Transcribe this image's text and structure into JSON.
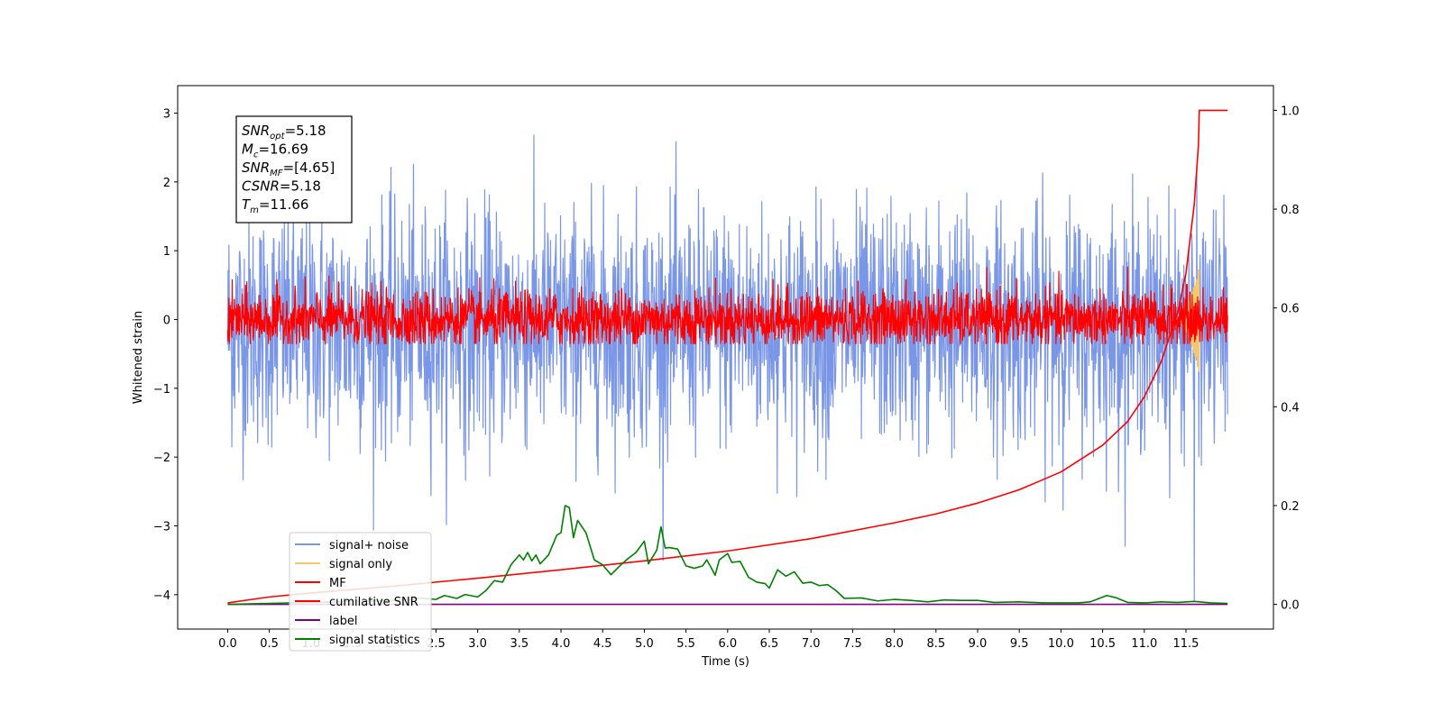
{
  "chart_data": {
    "type": "line",
    "xlabel": "Time (s)",
    "ylabel": "Whitened strain",
    "xlim": [
      -0.6,
      12.55
    ],
    "ylim_left": [
      -4.5,
      3.4
    ],
    "ylim_right": [
      -0.05,
      1.05
    ],
    "x_ticks": [
      0.0,
      0.5,
      1.0,
      1.5,
      2.0,
      2.5,
      3.0,
      3.5,
      4.0,
      4.5,
      5.0,
      5.5,
      6.0,
      6.5,
      7.0,
      7.5,
      8.0,
      8.5,
      9.0,
      9.5,
      10.0,
      10.5,
      11.0,
      11.5
    ],
    "x_tick_labels": [
      "0.0",
      "0.5",
      "1.0",
      "1.5",
      "2.0",
      "2.5",
      "3.0",
      "3.5",
      "4.0",
      "4.5",
      "5.0",
      "5.5",
      "6.0",
      "6.5",
      "7.0",
      "7.5",
      "8.0",
      "8.5",
      "9.0",
      "9.5",
      "10.0",
      "10.5",
      "11.0",
      "11.5"
    ],
    "left_ticks": [
      3,
      2,
      1,
      0,
      -1,
      -2,
      -3,
      -4
    ],
    "left_tick_labels": [
      "3",
      "2",
      "1",
      "0",
      "−1",
      "−2",
      "−3",
      "−4"
    ],
    "right_ticks": [
      1.0,
      0.8,
      0.6,
      0.4,
      0.2,
      0.0
    ],
    "right_tick_labels": [
      "1.0",
      "0.8",
      "0.6",
      "0.4",
      "0.2",
      "0.0"
    ],
    "series": [
      {
        "name": "signal+ noise",
        "axis": "left",
        "color": "#7a96e6",
        "style": "noise",
        "x_range": [
          0.0,
          12.0
        ],
        "mean": -0.1,
        "amplitude": 1.0,
        "max": 3.05,
        "min": -3.5,
        "spike_min": {
          "x": 11.6,
          "y": -4.1
        }
      },
      {
        "name": "signal only",
        "axis": "left",
        "color": "#f5c96b",
        "style": "chirp",
        "x_range": [
          11.35,
          11.66
        ],
        "amplitude_max": 0.8
      },
      {
        "name": "MF",
        "axis": "left",
        "color": "#ff0000",
        "style": "noise",
        "x_range": [
          0.0,
          12.0
        ],
        "mean": 0.0,
        "amplitude": 0.25,
        "max": 0.9,
        "min": -0.35
      },
      {
        "name": "cumilative SNR",
        "axis": "right",
        "color": "#ff0000",
        "points": [
          [
            0.0,
            0.003
          ],
          [
            0.5,
            0.015
          ],
          [
            1.0,
            0.023
          ],
          [
            2.0,
            0.037
          ],
          [
            3.0,
            0.053
          ],
          [
            4.0,
            0.07
          ],
          [
            5.0,
            0.088
          ],
          [
            6.0,
            0.108
          ],
          [
            7.0,
            0.133
          ],
          [
            8.0,
            0.165
          ],
          [
            8.5,
            0.183
          ],
          [
            9.0,
            0.205
          ],
          [
            9.5,
            0.232
          ],
          [
            10.0,
            0.268
          ],
          [
            10.5,
            0.322
          ],
          [
            10.8,
            0.37
          ],
          [
            11.0,
            0.42
          ],
          [
            11.2,
            0.49
          ],
          [
            11.4,
            0.59
          ],
          [
            11.5,
            0.67
          ],
          [
            11.6,
            0.81
          ],
          [
            11.65,
            0.93
          ],
          [
            11.66,
            1.0
          ],
          [
            12.0,
            1.0
          ]
        ]
      },
      {
        "name": "label",
        "axis": "right",
        "color": "#800080",
        "points": [
          [
            0.0,
            0.0
          ],
          [
            12.0,
            0.0
          ]
        ]
      },
      {
        "name": "signal statistics",
        "axis": "right",
        "color": "#008000",
        "points": [
          [
            0.0,
            0.0
          ],
          [
            0.5,
            0.002
          ],
          [
            1.0,
            0.004
          ],
          [
            1.5,
            0.006
          ],
          [
            2.0,
            0.008
          ],
          [
            2.2,
            0.01
          ],
          [
            2.3,
            0.013
          ],
          [
            2.5,
            0.01
          ],
          [
            2.6,
            0.018
          ],
          [
            2.75,
            0.012
          ],
          [
            2.85,
            0.02
          ],
          [
            3.0,
            0.015
          ],
          [
            3.1,
            0.028
          ],
          [
            3.2,
            0.048
          ],
          [
            3.3,
            0.045
          ],
          [
            3.4,
            0.08
          ],
          [
            3.5,
            0.1
          ],
          [
            3.55,
            0.09
          ],
          [
            3.6,
            0.105
          ],
          [
            3.65,
            0.088
          ],
          [
            3.7,
            0.1
          ],
          [
            3.75,
            0.082
          ],
          [
            3.85,
            0.1
          ],
          [
            3.95,
            0.14
          ],
          [
            4.0,
            0.145
          ],
          [
            4.05,
            0.2
          ],
          [
            4.1,
            0.196
          ],
          [
            4.15,
            0.135
          ],
          [
            4.2,
            0.17
          ],
          [
            4.3,
            0.145
          ],
          [
            4.4,
            0.09
          ],
          [
            4.5,
            0.08
          ],
          [
            4.6,
            0.06
          ],
          [
            4.7,
            0.077
          ],
          [
            4.8,
            0.092
          ],
          [
            4.9,
            0.105
          ],
          [
            5.0,
            0.128
          ],
          [
            5.05,
            0.082
          ],
          [
            5.15,
            0.11
          ],
          [
            5.2,
            0.157
          ],
          [
            5.25,
            0.114
          ],
          [
            5.3,
            0.115
          ],
          [
            5.4,
            0.112
          ],
          [
            5.5,
            0.078
          ],
          [
            5.6,
            0.073
          ],
          [
            5.7,
            0.078
          ],
          [
            5.75,
            0.09
          ],
          [
            5.8,
            0.075
          ],
          [
            5.85,
            0.059
          ],
          [
            5.9,
            0.09
          ],
          [
            6.0,
            0.103
          ],
          [
            6.05,
            0.085
          ],
          [
            6.15,
            0.087
          ],
          [
            6.25,
            0.055
          ],
          [
            6.35,
            0.045
          ],
          [
            6.45,
            0.042
          ],
          [
            6.5,
            0.033
          ],
          [
            6.6,
            0.07
          ],
          [
            6.7,
            0.057
          ],
          [
            6.8,
            0.066
          ],
          [
            6.9,
            0.043
          ],
          [
            7.0,
            0.045
          ],
          [
            7.1,
            0.038
          ],
          [
            7.2,
            0.04
          ],
          [
            7.3,
            0.028
          ],
          [
            7.4,
            0.012
          ],
          [
            7.6,
            0.013
          ],
          [
            7.8,
            0.007
          ],
          [
            8.0,
            0.01
          ],
          [
            8.2,
            0.008
          ],
          [
            8.4,
            0.005
          ],
          [
            8.6,
            0.009
          ],
          [
            8.8,
            0.008
          ],
          [
            9.0,
            0.008
          ],
          [
            9.2,
            0.004
          ],
          [
            9.5,
            0.005
          ],
          [
            9.8,
            0.003
          ],
          [
            10.0,
            0.003
          ],
          [
            10.2,
            0.003
          ],
          [
            10.35,
            0.005
          ],
          [
            10.55,
            0.018
          ],
          [
            10.65,
            0.014
          ],
          [
            10.8,
            0.004
          ],
          [
            11.0,
            0.003
          ],
          [
            11.2,
            0.005
          ],
          [
            11.4,
            0.004
          ],
          [
            11.6,
            0.006
          ],
          [
            11.8,
            0.003
          ],
          [
            12.0,
            0.002
          ]
        ]
      }
    ],
    "legend": {
      "placement": "lower-left",
      "entries": [
        {
          "label": "signal+ noise",
          "color": "#7a96e6"
        },
        {
          "label": "signal only",
          "color": "#f5c96b"
        },
        {
          "label": "MF",
          "color": "#ff0000"
        },
        {
          "label": "cumilative SNR",
          "color": "#ff0000"
        },
        {
          "label": "label",
          "color": "#800080"
        },
        {
          "label": "signal statistics",
          "color": "#008000"
        }
      ]
    },
    "info_box": [
      {
        "base": "SNR",
        "sub": "opt",
        "value": "=5.18"
      },
      {
        "base": "M",
        "sub": "c",
        "value": "=16.69"
      },
      {
        "base": "SNR",
        "sub": "MF",
        "value": "=[4.65]"
      },
      {
        "base": "CSNR",
        "sub": "",
        "value": "=5.18"
      },
      {
        "base": "T",
        "sub": "m",
        "value": "=11.66"
      }
    ],
    "grid": false
  }
}
